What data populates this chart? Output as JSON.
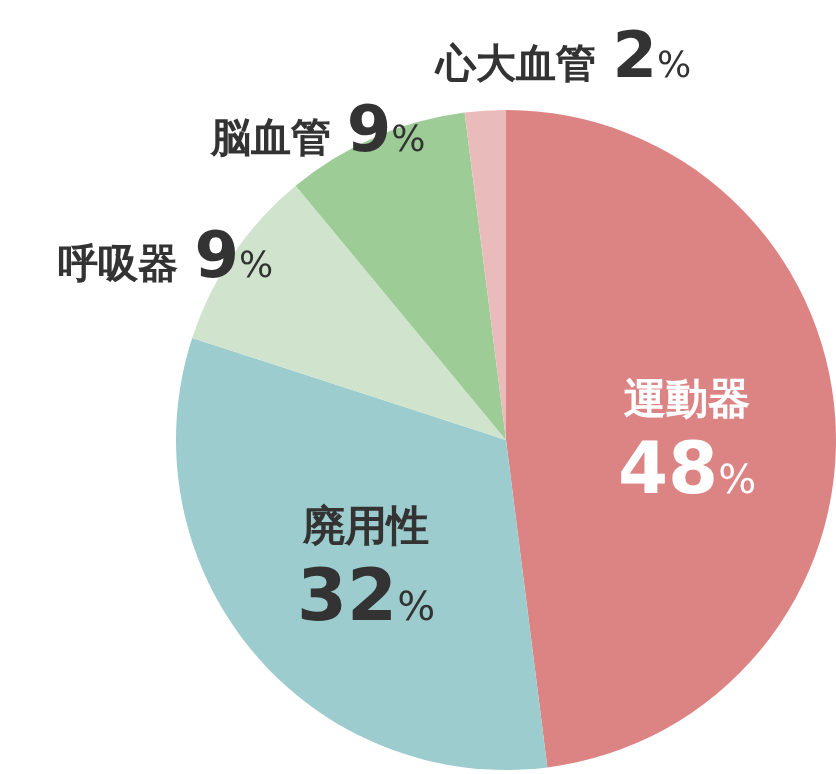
{
  "chart_data": {
    "type": "pie",
    "categories": [
      "運動器",
      "廃用性",
      "呼吸器",
      "脳血管",
      "心大血管"
    ],
    "values": [
      48,
      32,
      9,
      9,
      2
    ],
    "value_labels": [
      "48%",
      "32%",
      "9%",
      "9%",
      "2%"
    ],
    "colors": [
      "#dc8384",
      "#9ccccd",
      "#cfe3cd",
      "#9dcc96",
      "#eabbbb"
    ]
  }
}
